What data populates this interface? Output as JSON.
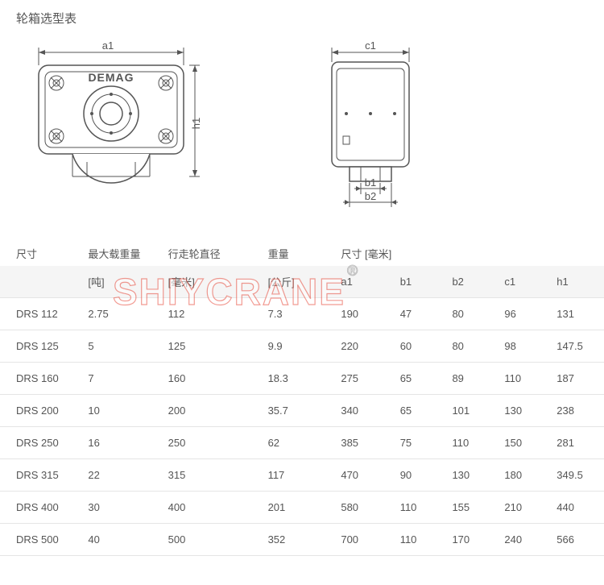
{
  "title": "轮箱选型表",
  "watermark": {
    "text": "SHIYCRANE",
    "reg": "®"
  },
  "diagram_left": {
    "dim_a1": "a1",
    "dim_h1": "h1",
    "brand": "DEMAG"
  },
  "diagram_right": {
    "dim_c1": "c1",
    "dim_b1": "b1",
    "dim_b2": "b2"
  },
  "table": {
    "header": [
      "尺寸",
      "最大载重量",
      "行走轮直径",
      "重量",
      "尺寸 [毫米]",
      "",
      "",
      "",
      ""
    ],
    "sub_header": [
      "",
      "",
      "",
      "",
      "a1",
      "b1",
      "b2",
      "c1",
      "h1"
    ],
    "units": [
      "",
      "[吨]",
      "[毫米]",
      "[公斤]",
      "",
      "",
      "",
      "",
      ""
    ],
    "rows": [
      [
        "DRS 112",
        "2.75",
        "112",
        "7.3",
        "190",
        "47",
        "80",
        "96",
        "131"
      ],
      [
        "DRS 125",
        "5",
        "125",
        "9.9",
        "220",
        "60",
        "80",
        "98",
        "147.5"
      ],
      [
        "DRS 160",
        "7",
        "160",
        "18.3",
        "275",
        "65",
        "89",
        "110",
        "187"
      ],
      [
        "DRS 200",
        "10",
        "200",
        "35.7",
        "340",
        "65",
        "101",
        "130",
        "238"
      ],
      [
        "DRS 250",
        "16",
        "250",
        "62",
        "385",
        "75",
        "110",
        "150",
        "281"
      ],
      [
        "DRS 315",
        "22",
        "315",
        "117",
        "470",
        "90",
        "130",
        "180",
        "349.5"
      ],
      [
        "DRS 400",
        "30",
        "400",
        "201",
        "580",
        "110",
        "155",
        "210",
        "440"
      ],
      [
        "DRS 500",
        "40",
        "500",
        "352",
        "700",
        "110",
        "170",
        "240",
        "566"
      ]
    ]
  }
}
